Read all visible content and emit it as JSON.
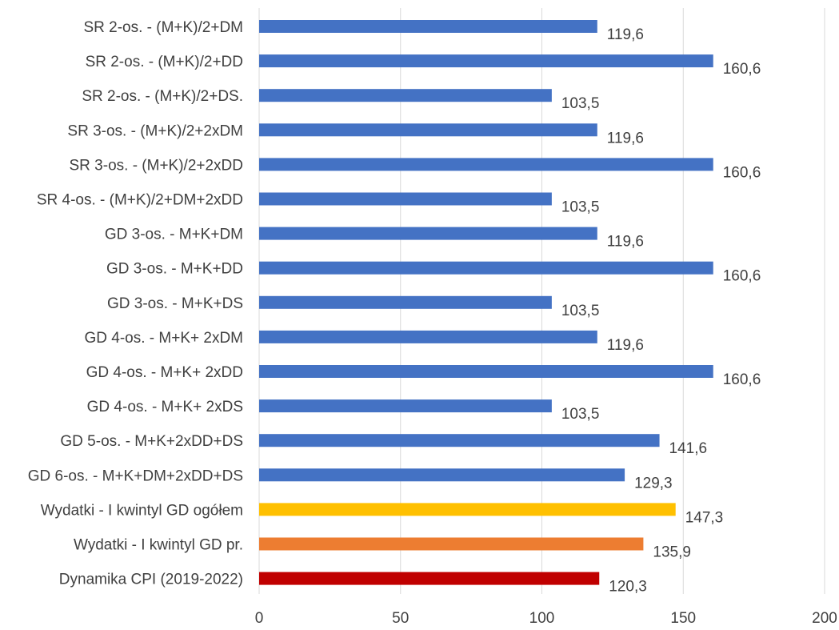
{
  "chart_data": {
    "type": "bar",
    "orientation": "horizontal",
    "title": "",
    "xlabel": "",
    "ylabel": "",
    "xlim": [
      0,
      200
    ],
    "ticks": [
      "0",
      "50",
      "100",
      "150",
      "200"
    ],
    "tick_values": [
      0,
      50,
      100,
      150,
      200
    ],
    "grid": true,
    "legend": "none",
    "categories": [
      "SR 2-os. - (M+K)/2+DM",
      "SR 2-os. - (M+K)/2+DD",
      "SR 2-os. - (M+K)/2+DS.",
      "SR 3-os. - (M+K)/2+2xDM",
      "SR 3-os. - (M+K)/2+2xDD",
      "SR 4-os. - (M+K)/2+DM+2xDD",
      "GD 3-os. - M+K+DM",
      "GD 3-os. - M+K+DD",
      "GD 3-os. - M+K+DS",
      "GD 4-os. - M+K+ 2xDM",
      "GD 4-os. - M+K+ 2xDD",
      "GD 4-os. - M+K+ 2xDS",
      "GD 5-os. - M+K+2xDD+DS",
      "GD 6-os. - M+K+DM+2xDD+DS",
      "Wydatki - I kwintyl GD ogółem",
      "Wydatki - I kwintyl GD pr.",
      "Dynamika CPI (2019-2022)"
    ],
    "values": [
      119.6,
      160.6,
      103.5,
      119.6,
      160.6,
      103.5,
      119.6,
      160.6,
      103.5,
      119.6,
      160.6,
      103.5,
      141.6,
      129.3,
      147.3,
      135.9,
      120.3
    ],
    "value_labels": [
      "119,6",
      "160,6",
      "103,5",
      "119,6",
      "160,6",
      "103,5",
      "119,6",
      "160,6",
      "103,5",
      "119,6",
      "160,6",
      "103,5",
      "141,6",
      "129,3",
      "147,3",
      "135,9",
      "120,3"
    ],
    "colors": [
      "#4472c4",
      "#4472c4",
      "#4472c4",
      "#4472c4",
      "#4472c4",
      "#4472c4",
      "#4472c4",
      "#4472c4",
      "#4472c4",
      "#4472c4",
      "#4472c4",
      "#4472c4",
      "#4472c4",
      "#4472c4",
      "#ffc000",
      "#ed7d31",
      "#c00000"
    ]
  }
}
